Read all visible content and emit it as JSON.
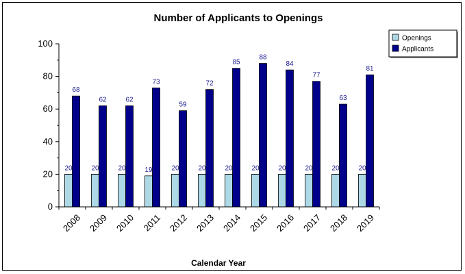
{
  "chart_data": {
    "type": "bar",
    "title": "Number of Applicants to Openings",
    "xlabel": "Calendar Year",
    "ylabel": "",
    "ylim": [
      0,
      100
    ],
    "yticks": [
      0,
      20,
      40,
      60,
      80,
      100
    ],
    "categories": [
      "2008",
      "2009",
      "2010",
      "2011",
      "2012",
      "2013",
      "2014",
      "2015",
      "2016",
      "2017",
      "2018",
      "2019"
    ],
    "series": [
      {
        "name": "Openings",
        "color": "#add8e6",
        "values": [
          20,
          20,
          20,
          19,
          20,
          20,
          20,
          20,
          20,
          20,
          20,
          20
        ]
      },
      {
        "name": "Applicants",
        "color": "#00008b",
        "values": [
          68,
          62,
          62,
          73,
          59,
          72,
          85,
          88,
          84,
          77,
          63,
          81
        ]
      }
    ],
    "data_label_color": "#1a1a8c",
    "legend": "top-right",
    "grid": false
  }
}
